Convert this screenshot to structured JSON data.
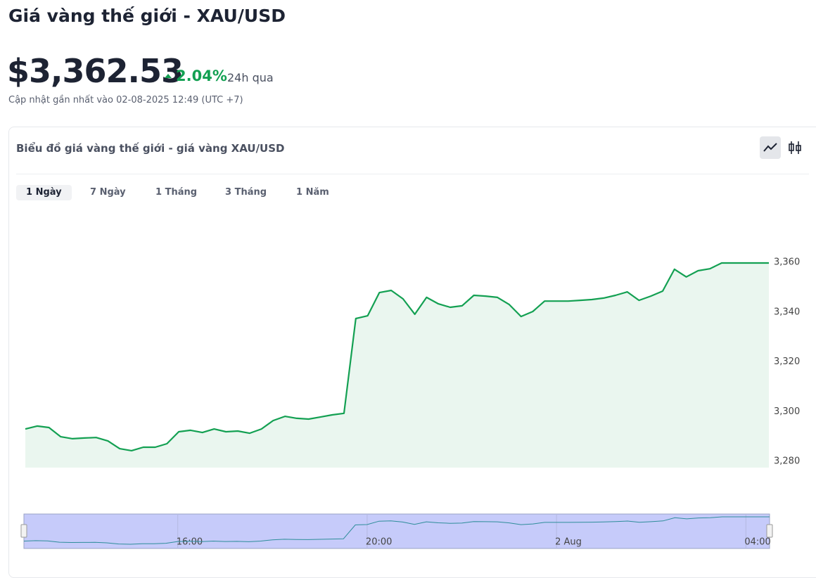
{
  "header": {
    "title": "Giá vàng thế giới - XAU/USD",
    "price": "$3,362.53",
    "change": "2.04%",
    "change_period": "24h qua",
    "updated": "Cập nhật gần nhất vào 02-08-2025 12:49 (UTC +7)"
  },
  "tabs": [
    "1 Ngày",
    "7 Ngày",
    "1 Tháng",
    "3 Tháng",
    "1 Năm"
  ],
  "chart_data": {
    "type": "area",
    "title": "Biểu đồ giá vàng thế giới - giá vàng XAU/USD",
    "color": "#13a052",
    "fill": "#eaf6ef",
    "values": [
      3293.0,
      3294.2,
      3293.6,
      3289.9,
      3289.1,
      3289.4,
      3289.6,
      3288.2,
      3285.1,
      3284.3,
      3285.7,
      3285.7,
      3287.1,
      3291.9,
      3292.5,
      3291.6,
      3293.0,
      3291.9,
      3292.2,
      3291.3,
      3293.0,
      3296.4,
      3298.1,
      3297.3,
      3297.0,
      3297.8,
      3298.7,
      3299.3,
      3337.4,
      3338.5,
      3347.8,
      3348.7,
      3345.3,
      3339.1,
      3345.9,
      3343.3,
      3341.9,
      3342.5,
      3346.7,
      3346.4,
      3345.9,
      3343.0,
      3338.2,
      3340.2,
      3344.4,
      3344.4,
      3344.4,
      3344.7,
      3345.0,
      3345.6,
      3346.7,
      3348.1,
      3344.7,
      3346.4,
      3348.4,
      3357.2,
      3354.1,
      3356.6,
      3357.4,
      3359.7,
      3359.7,
      3359.7,
      3359.7,
      3359.7
    ],
    "xlim": [
      0,
      63
    ],
    "xticks": [
      {
        "value": 13,
        "label": "16:00"
      },
      {
        "value": 29,
        "label": "20:00"
      },
      {
        "value": 45,
        "label": "2 Aug"
      },
      {
        "value": 61,
        "label": "04:00"
      }
    ],
    "ylim": [
      3277.5,
      3377.5
    ],
    "yticks": [
      {
        "value": 3280,
        "label": "3,280"
      },
      {
        "value": 3300,
        "label": "3,300"
      },
      {
        "value": 3320,
        "label": "3,320"
      },
      {
        "value": 3340,
        "label": "3,340"
      },
      {
        "value": 3360,
        "label": "3,360"
      }
    ],
    "grid": false
  }
}
